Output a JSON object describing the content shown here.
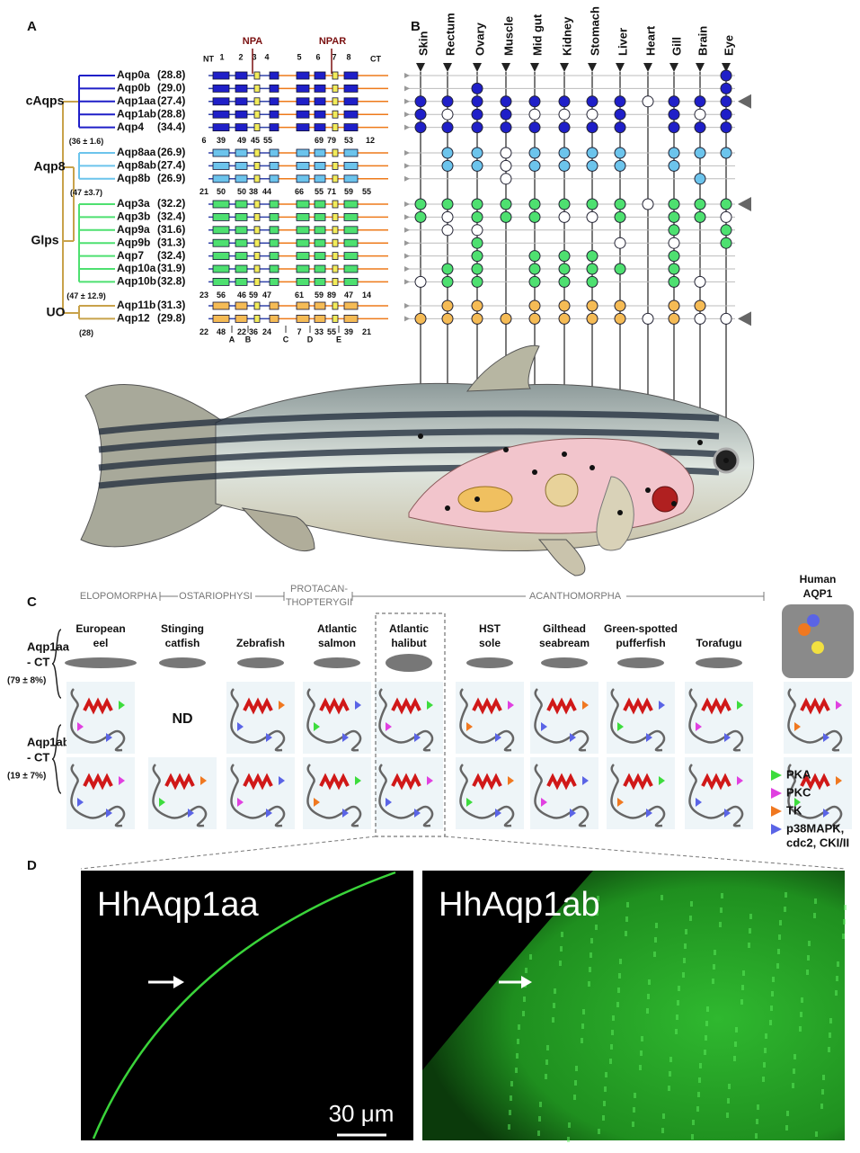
{
  "panel_a": {
    "label": "A",
    "motifs": {
      "nt": "NT",
      "ct": "CT",
      "npa": "NPA",
      "npar": "NPAR",
      "helices": [
        "1",
        "2",
        "3",
        "4",
        "5",
        "6",
        "7",
        "8"
      ],
      "loops": [
        "A",
        "B",
        "C",
        "D",
        "E"
      ]
    },
    "groups": [
      {
        "name": "cAqps",
        "color": "#1f1fc8",
        "support": "(36 ± 1.6)",
        "lengths": [
          "6",
          "39",
          "49",
          "45",
          "55",
          "69",
          "79",
          "53",
          "12"
        ],
        "genes": [
          {
            "name": "Aqp0a",
            "value": "(28.8)"
          },
          {
            "name": "Aqp0b",
            "value": "(29.0)"
          },
          {
            "name": "Aqp1aa",
            "value": "(27.4)"
          },
          {
            "name": "Aqp1ab",
            "value": "(28.8)"
          },
          {
            "name": "Aqp4",
            "value": "(34.4)"
          }
        ]
      },
      {
        "name": "Aqp8",
        "color": "#6cc4ec",
        "support": "(47 ±3.7)",
        "lengths": [
          "21",
          "50",
          "50",
          "38",
          "44",
          "66",
          "55",
          "71",
          "59",
          "55"
        ],
        "genes": [
          {
            "name": "Aqp8aa",
            "value": "(26.9)"
          },
          {
            "name": "Aqp8ab",
            "value": "(27.4)"
          },
          {
            "name": "Aqp8b",
            "value": "(26.9)"
          }
        ]
      },
      {
        "name": "Glps",
        "color": "#4ee070",
        "support": "(47 ± 12.9)",
        "lengths": [
          "23",
          "56",
          "46",
          "59",
          "47",
          "61",
          "59",
          "89",
          "47",
          "14"
        ],
        "genes": [
          {
            "name": "Aqp3a",
            "value": "(32.2)"
          },
          {
            "name": "Aqp3b",
            "value": "(32.4)"
          },
          {
            "name": "Aqp9a",
            "value": "(31.6)"
          },
          {
            "name": "Aqp9b",
            "value": "(31.3)"
          },
          {
            "name": "Aqp7",
            "value": "(32.4)"
          },
          {
            "name": "Aqp10a",
            "value": "(31.9)"
          },
          {
            "name": "Aqp10b",
            "value": "(32.8)"
          }
        ]
      },
      {
        "name": "UO",
        "color": "#f5bb55",
        "support": "(28)",
        "lengths": [
          "22",
          "48",
          "22",
          "36",
          "24",
          "7",
          "33",
          "55",
          "39",
          "21"
        ],
        "genes": [
          {
            "name": "Aqp11b",
            "value": "(31.3)"
          },
          {
            "name": "Aqp12",
            "value": "(29.8)"
          }
        ]
      }
    ]
  },
  "panel_b": {
    "label": "B",
    "tissues": [
      "Skin",
      "Rectum",
      "Ovary",
      "Muscle",
      "Mid gut",
      "Kidney",
      "Stomach",
      "Liver",
      "Heart",
      "Gill",
      "Brain",
      "Eye"
    ],
    "expression": [
      [
        null,
        null,
        null,
        null,
        null,
        null,
        null,
        null,
        null,
        null,
        null,
        1
      ],
      [
        null,
        null,
        1,
        null,
        null,
        null,
        null,
        null,
        null,
        null,
        null,
        1
      ],
      [
        1,
        1,
        1,
        1,
        1,
        1,
        1,
        1,
        0,
        1,
        1,
        1
      ],
      [
        1,
        0,
        1,
        1,
        0,
        0,
        0,
        1,
        null,
        1,
        0,
        1
      ],
      [
        1,
        1,
        1,
        1,
        1,
        1,
        1,
        1,
        null,
        1,
        1,
        1
      ],
      [
        null,
        1,
        1,
        0,
        1,
        1,
        1,
        1,
        null,
        1,
        1,
        1
      ],
      [
        null,
        1,
        1,
        0,
        1,
        1,
        1,
        1,
        null,
        1,
        null,
        null
      ],
      [
        null,
        null,
        null,
        0,
        null,
        null,
        null,
        null,
        null,
        null,
        1,
        null
      ],
      [
        1,
        1,
        1,
        1,
        1,
        1,
        1,
        1,
        0,
        1,
        1,
        1
      ],
      [
        1,
        0,
        1,
        1,
        1,
        0,
        0,
        1,
        null,
        1,
        1,
        0
      ],
      [
        null,
        0,
        0,
        null,
        null,
        null,
        null,
        null,
        null,
        1,
        null,
        1
      ],
      [
        null,
        null,
        1,
        null,
        null,
        null,
        null,
        0,
        null,
        0,
        null,
        1
      ],
      [
        null,
        null,
        1,
        null,
        1,
        1,
        1,
        null,
        null,
        1,
        null,
        null
      ],
      [
        null,
        1,
        1,
        null,
        1,
        1,
        1,
        1,
        null,
        1,
        null,
        null
      ],
      [
        0,
        1,
        1,
        null,
        1,
        1,
        1,
        null,
        null,
        1,
        0,
        null
      ],
      [
        null,
        1,
        1,
        null,
        1,
        1,
        1,
        1,
        null,
        1,
        1,
        null
      ],
      [
        1,
        1,
        1,
        1,
        1,
        1,
        1,
        1,
        0,
        1,
        0,
        0
      ]
    ]
  },
  "panel_c": {
    "label": "C",
    "clades": [
      [
        "ELOPOMORPHA"
      ],
      [
        "OSTARIOPHYSI"
      ],
      [
        "PROTACAN-",
        "THOPTERYGII"
      ],
      [
        "ACANTHOMORPHA"
      ]
    ],
    "species": [
      [
        "European",
        "eel"
      ],
      [
        "Stinging",
        "catfish"
      ],
      [
        "Zebrafish"
      ],
      [
        "Atlantic",
        "salmon"
      ],
      [
        "Atlantic",
        "halibut"
      ],
      [
        "HST",
        "sole"
      ],
      [
        "Gilthead",
        "seabream"
      ],
      [
        "Green-spotted",
        "pufferfish"
      ],
      [
        "Torafugu"
      ],
      [
        "Human",
        "AQP1"
      ]
    ],
    "rows": [
      {
        "label": [
          "Aqp1aa",
          "- CT"
        ],
        "support": "(79 ± 8%)"
      },
      {
        "label": [
          "Aqp1ab",
          "- CT"
        ],
        "support": "(19 ± 7%)"
      }
    ],
    "nd": "ND",
    "legend": [
      {
        "name": [
          "PKA"
        ],
        "color": "#3ddc3d"
      },
      {
        "name": [
          "PKC"
        ],
        "color": "#e040e0"
      },
      {
        "name": [
          "TK"
        ],
        "color": "#f07820"
      },
      {
        "name": [
          "p38MAPK,",
          "cdc2, CKI/II"
        ],
        "color": "#5a64e6"
      }
    ]
  },
  "panel_d": {
    "label": "D",
    "images": [
      "HhAqp1aa",
      "HhAqp1ab"
    ],
    "scale_bar": "30 μm"
  }
}
